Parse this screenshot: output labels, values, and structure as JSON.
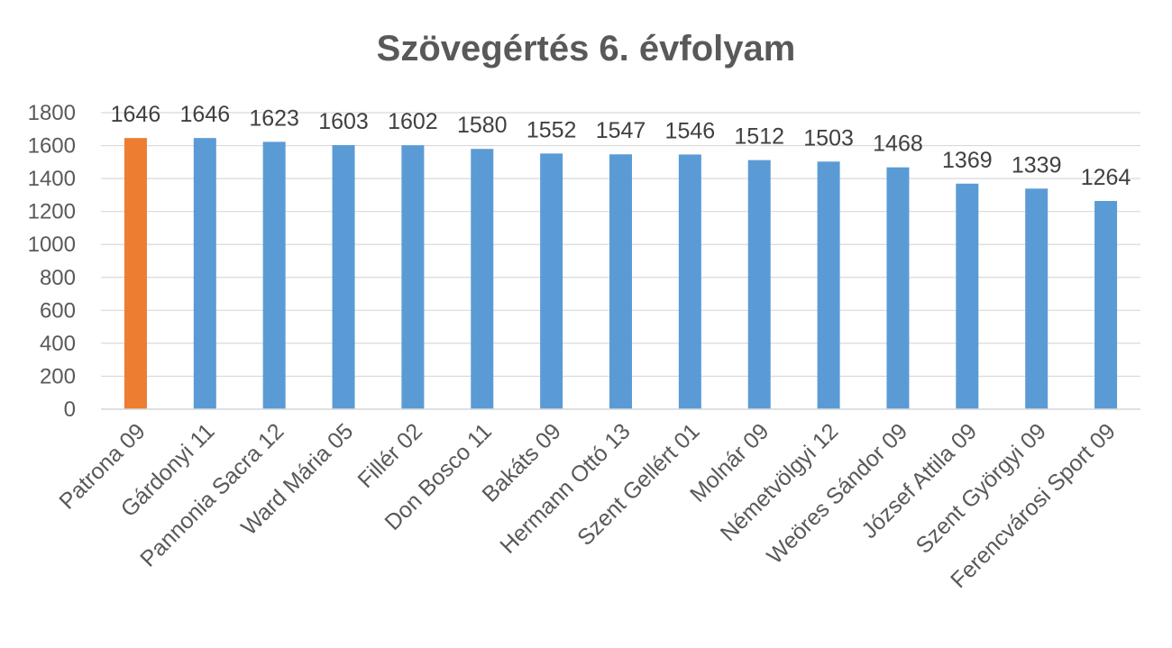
{
  "chart_data": {
    "type": "bar",
    "title": "Szövegértés 6. évfolyam",
    "xlabel": "",
    "ylabel": "",
    "ylim": [
      0,
      1800
    ],
    "yticks": [
      0,
      200,
      400,
      600,
      800,
      1000,
      1200,
      1400,
      1600,
      1800
    ],
    "grid": true,
    "legend": "none",
    "categories": [
      "Patrona  09",
      "Gárdonyi  11",
      "Pannonia Sacra  12",
      "Ward Mária  05",
      "Fillér  02",
      "Don Bosco  11",
      "Bakáts  09",
      "Hermann Ottó  13",
      "Szent Gellért  01",
      "Molnár  09",
      "Németvölgyi  12",
      "Weöres Sándor  09",
      "József Attila  09",
      "Szent Györgyi  09",
      "Ferencvárosi Sport  09"
    ],
    "values": [
      1646,
      1646,
      1623,
      1603,
      1602,
      1580,
      1552,
      1547,
      1546,
      1512,
      1503,
      1468,
      1369,
      1339,
      1264
    ],
    "colors": {
      "highlight": "#ED7D31",
      "default": "#5B9BD5",
      "grid": "#D9D9D9"
    },
    "highlight_index": 0
  }
}
